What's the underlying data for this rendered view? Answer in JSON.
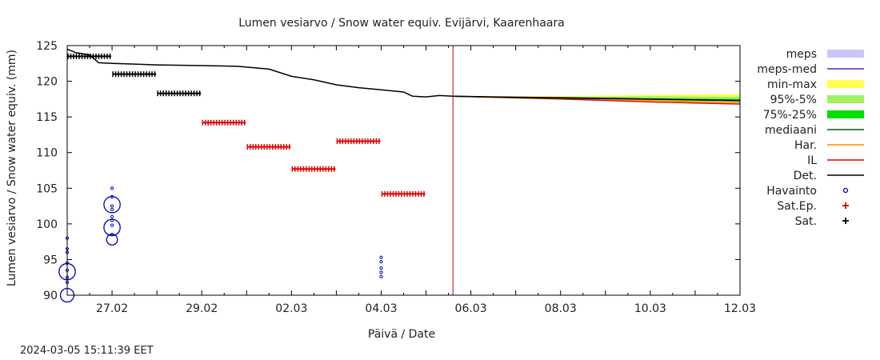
{
  "chart_data": {
    "type": "line",
    "title": "Lumen vesiarvo / Snow water equiv.  Evijärvi, Kaarenhaara",
    "xlabel": "Päivä / Date",
    "ylabel": "Lumen vesiarvo / Snow water equiv. (mm)",
    "timestamp": "2024-03-05 15:11:39 EET",
    "x_range_days": [
      0,
      15
    ],
    "ylim": [
      90,
      125
    ],
    "y_ticks": [
      90,
      95,
      100,
      105,
      110,
      115,
      120,
      125
    ],
    "x_ticks": [
      {
        "x": 1,
        "label": "27.02"
      },
      {
        "x": 3,
        "label": "29.02"
      },
      {
        "x": 5,
        "label": "02.03"
      },
      {
        "x": 7,
        "label": "04.03"
      },
      {
        "x": 9,
        "label": "06.03"
      },
      {
        "x": 11,
        "label": "08.03"
      },
      {
        "x": 13,
        "label": "10.03"
      },
      {
        "x": 15,
        "label": "12.03"
      }
    ],
    "forecast_start_x": 8.6,
    "legend": [
      {
        "key": "meps",
        "label": "meps",
        "kind": "band",
        "color": "#c8c8f8"
      },
      {
        "key": "meps_med",
        "label": "meps-med",
        "kind": "line",
        "color": "#3030c0"
      },
      {
        "key": "minmax",
        "label": "min-max",
        "kind": "band",
        "color": "#ffff50"
      },
      {
        "key": "p95",
        "label": "95%-5%",
        "kind": "band",
        "color": "#a0f060"
      },
      {
        "key": "p75",
        "label": "75%-25%",
        "kind": "band",
        "color": "#00e000"
      },
      {
        "key": "median",
        "label": "mediaani",
        "kind": "line",
        "color": "#006400"
      },
      {
        "key": "har",
        "label": "Har.",
        "kind": "line",
        "color": "#ff8c00"
      },
      {
        "key": "il",
        "label": "IL",
        "kind": "line",
        "color": "#e00000"
      },
      {
        "key": "det",
        "label": "Det.",
        "kind": "line",
        "color": "#000000"
      },
      {
        "key": "havainto",
        "label": "Havainto",
        "kind": "circle",
        "color": "#0000c8"
      },
      {
        "key": "satep",
        "label": "Sat.Ep.",
        "kind": "plus",
        "color": "#e00000"
      },
      {
        "key": "sat",
        "label": "Sat.",
        "kind": "plus",
        "color": "#000000"
      }
    ],
    "series": {
      "det": {
        "x": [
          0,
          0.2,
          0.5,
          0.7,
          1.0,
          1.5,
          2.0,
          3.0,
          3.8,
          4.5,
          5.0,
          5.5,
          6.0,
          6.5,
          7.0,
          7.5,
          7.7,
          8.0,
          8.3,
          8.6,
          9.5,
          11.0,
          13.0,
          15.0
        ],
        "y": [
          124.5,
          124.0,
          123.7,
          122.6,
          122.5,
          122.4,
          122.3,
          122.2,
          122.1,
          121.7,
          120.7,
          120.2,
          119.5,
          119.1,
          118.8,
          118.5,
          117.9,
          117.8,
          118.0,
          117.9,
          117.8,
          117.7,
          117.5,
          117.3
        ]
      },
      "minmax_upper": {
        "x": [
          8.6,
          11,
          13,
          15
        ],
        "y": [
          117.9,
          117.9,
          118.1,
          118.2
        ]
      },
      "minmax_lower": {
        "x": [
          8.6,
          11,
          13,
          15
        ],
        "y": [
          117.9,
          117.6,
          117.2,
          116.9
        ]
      },
      "p95_upper": {
        "x": [
          8.6,
          11,
          13,
          15
        ],
        "y": [
          117.9,
          117.8,
          117.9,
          117.8
        ]
      },
      "p95_lower": {
        "x": [
          8.6,
          11,
          13,
          15
        ],
        "y": [
          117.9,
          117.6,
          117.3,
          117.0
        ]
      },
      "p75_upper": {
        "x": [
          8.6,
          11,
          13,
          15
        ],
        "y": [
          117.9,
          117.7,
          117.6,
          117.5
        ]
      },
      "p75_lower": {
        "x": [
          8.6,
          11,
          13,
          15
        ],
        "y": [
          117.9,
          117.6,
          117.4,
          117.2
        ]
      },
      "median": {
        "x": [
          8.6,
          11,
          13,
          15
        ],
        "y": [
          117.9,
          117.6,
          117.5,
          117.3
        ]
      },
      "har": {
        "x": [
          8.6,
          11,
          13,
          15
        ],
        "y": [
          117.9,
          117.6,
          117.3,
          117.0
        ]
      },
      "il": {
        "x": [
          8.6,
          11,
          13,
          15
        ],
        "y": [
          117.9,
          117.5,
          117.1,
          116.8
        ]
      }
    },
    "sat": [
      {
        "x0": 0.0,
        "x1": 1.0,
        "y": 123.5
      },
      {
        "x0": 1.0,
        "x1": 2.0,
        "y": 121.0
      },
      {
        "x0": 2.0,
        "x1": 3.0,
        "y": 118.3
      }
    ],
    "sat_ep": [
      {
        "x0": 3.0,
        "x1": 4.0,
        "y": 114.2
      },
      {
        "x0": 4.0,
        "x1": 5.0,
        "y": 110.8
      },
      {
        "x0": 5.0,
        "x1": 6.0,
        "y": 107.7
      },
      {
        "x0": 6.0,
        "x1": 7.0,
        "y": 111.6
      },
      {
        "x0": 7.0,
        "x1": 8.0,
        "y": 104.2
      }
    ],
    "havainto_circles": [
      {
        "x": 0.0,
        "y": 93.3,
        "r": 1.2
      },
      {
        "x": 0.0,
        "y": 90.0,
        "r": 1.0
      },
      {
        "x": 1.0,
        "y": 102.7,
        "r": 1.2
      },
      {
        "x": 1.0,
        "y": 99.5,
        "r": 1.2
      },
      {
        "x": 1.0,
        "y": 97.8,
        "r": 0.8
      }
    ],
    "havainto_dots": [
      {
        "x": 0.0,
        "y": 98.0
      },
      {
        "x": 0.0,
        "y": 96.5
      },
      {
        "x": 0.0,
        "y": 96.0
      },
      {
        "x": 0.0,
        "y": 94.5
      },
      {
        "x": 0.0,
        "y": 93.5
      },
      {
        "x": 0.0,
        "y": 92.5
      },
      {
        "x": 0.0,
        "y": 91.8
      },
      {
        "x": 1.0,
        "y": 105.0
      },
      {
        "x": 1.0,
        "y": 103.8
      },
      {
        "x": 1.0,
        "y": 102.5
      },
      {
        "x": 1.0,
        "y": 102.0
      },
      {
        "x": 1.0,
        "y": 101.0
      },
      {
        "x": 1.0,
        "y": 100.5
      },
      {
        "x": 1.0,
        "y": 99.8
      },
      {
        "x": 1.0,
        "y": 98.5
      },
      {
        "x": 7.0,
        "y": 95.3
      },
      {
        "x": 7.0,
        "y": 94.7
      },
      {
        "x": 7.0,
        "y": 93.8
      },
      {
        "x": 7.0,
        "y": 93.2
      },
      {
        "x": 7.0,
        "y": 92.6
      }
    ]
  }
}
